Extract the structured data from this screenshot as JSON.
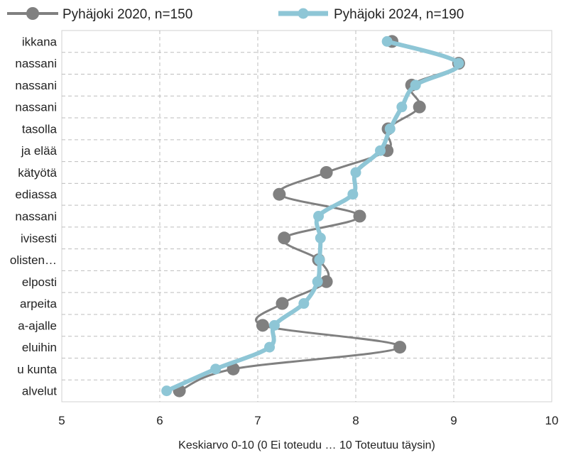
{
  "chart_data": {
    "type": "line",
    "orientation": "horizontal",
    "xlabel": "Keskiarvo 0-10 (0 Ei toteudu … 10 Toteutuu täysin)",
    "xlim": [
      5,
      10
    ],
    "xticks": [
      "5",
      "6",
      "7",
      "8",
      "9",
      "10"
    ],
    "grid": true,
    "legend_position": "top",
    "categories": [
      "ikkana",
      "nassani",
      "nassani",
      "nassani",
      "tasolla",
      "ja elää",
      "kätyötä",
      "ediassa",
      "nassani",
      "ivisesti",
      "olisten…",
      "elposti",
      "arpeita",
      "a-ajalle",
      "eluihin",
      "u kunta",
      "alvelut"
    ],
    "series": [
      {
        "name": "Pyhäjoki 2020, n=150",
        "color": "#808080",
        "values": [
          8.37,
          9.05,
          8.57,
          8.65,
          8.33,
          8.32,
          7.7,
          7.22,
          8.04,
          7.27,
          7.62,
          7.7,
          7.25,
          7.05,
          8.45,
          6.75,
          6.2
        ]
      },
      {
        "name": "Pyhäjoki 2024, n=190",
        "color": "#8ec6d6",
        "values": [
          8.32,
          9.05,
          8.61,
          8.47,
          8.35,
          8.25,
          8.0,
          7.97,
          7.62,
          7.64,
          7.63,
          7.61,
          7.47,
          7.17,
          7.12,
          6.57,
          6.07
        ]
      }
    ]
  }
}
